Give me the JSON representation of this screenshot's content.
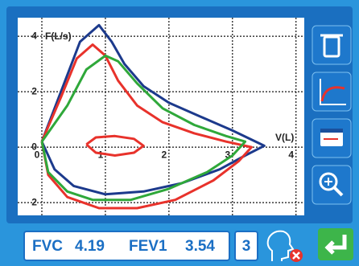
{
  "chart_data": {
    "type": "line",
    "x_label": "V(L)",
    "y_label": "F(L/s)",
    "xlim": [
      -0.38,
      4.13
    ],
    "ylim": [
      -2.46,
      4.67
    ],
    "xticks": [
      0,
      1,
      2,
      3,
      4
    ],
    "yticks": [
      {
        "value": -2,
        "label": "2"
      },
      0,
      2,
      4
    ],
    "grid": true,
    "series": [
      {
        "color": "#1c3a8c",
        "x": [
          0,
          0.3,
          0.6,
          0.9,
          1.1,
          1.3,
          1.6,
          2.0,
          2.5,
          3.0,
          3.5,
          3.2,
          2.8,
          2.2,
          1.6,
          1.0,
          0.5,
          0.2,
          0
        ],
        "values": [
          0.2,
          2.0,
          3.8,
          4.4,
          3.8,
          3.0,
          2.2,
          1.6,
          1.1,
          0.6,
          0.05,
          -0.3,
          -0.8,
          -1.3,
          -1.6,
          -1.7,
          -1.4,
          -0.8,
          0.2
        ]
      },
      {
        "color": "#e8322b",
        "x": [
          0,
          0.3,
          0.55,
          0.8,
          1.0,
          1.2,
          1.5,
          1.9,
          2.4,
          2.9,
          3.3,
          3.1,
          2.7,
          2.1,
          1.5,
          0.9,
          0.4,
          0.1,
          0
        ],
        "values": [
          0.2,
          1.8,
          3.2,
          3.7,
          3.3,
          2.4,
          1.5,
          0.9,
          0.5,
          0.2,
          0.0,
          -0.5,
          -1.2,
          -1.9,
          -2.2,
          -2.2,
          -1.8,
          -1.0,
          0.2
        ]
      },
      {
        "color": "#2fa83a",
        "x": [
          0,
          0.4,
          0.7,
          1.0,
          1.2,
          1.5,
          1.9,
          2.4,
          2.9,
          3.2,
          3.0,
          2.6,
          2.0,
          1.4,
          0.8,
          0.4,
          0.1,
          0
        ],
        "values": [
          0.2,
          1.5,
          2.8,
          3.3,
          3.1,
          2.3,
          1.4,
          0.8,
          0.4,
          0.2,
          -0.3,
          -0.9,
          -1.5,
          -1.9,
          -1.9,
          -1.6,
          -0.9,
          0.2
        ]
      },
      {
        "color": "#e8322b",
        "x": [
          0.7,
          0.85,
          1.15,
          1.45,
          1.6,
          1.45,
          1.15,
          0.85,
          0.7
        ],
        "values": [
          0.1,
          0.35,
          0.4,
          0.3,
          0.05,
          -0.2,
          -0.3,
          -0.2,
          0.1
        ]
      }
    ]
  },
  "status_bar": {
    "fvc_label": "FVC",
    "fvc": "4.19",
    "fev1_label": "FEV1",
    "fev1": "3.54",
    "count": "3"
  }
}
